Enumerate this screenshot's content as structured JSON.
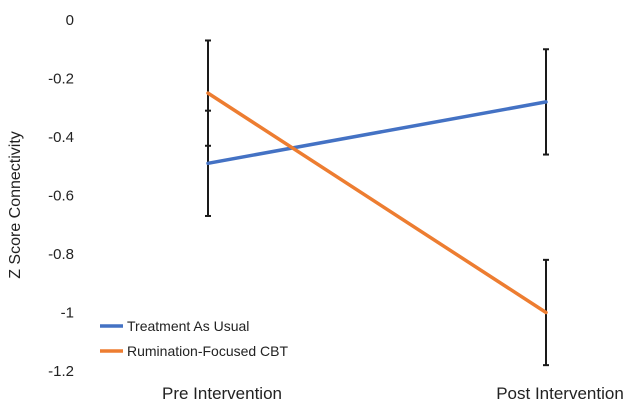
{
  "chart_data": {
    "type": "line",
    "title": "",
    "xlabel": "",
    "ylabel": "Z Score Connectivity",
    "categories": [
      "Pre Intervention",
      "Post Intervention"
    ],
    "ylim": [
      -1.2,
      0
    ],
    "yticks": [
      0,
      -0.2,
      -0.4,
      -0.6,
      -0.8,
      -1,
      -1.2
    ],
    "ytick_labels": [
      "0",
      "-0.2",
      "-0.4",
      "-0.6",
      "-0.8",
      "-1",
      "-1.2"
    ],
    "grid": false,
    "legend_position": "bottom-left",
    "series": [
      {
        "name": "Treatment As Usual",
        "color": "#4472C4",
        "values": [
          -0.49,
          -0.28
        ],
        "error_low": [
          -0.67,
          -0.46
        ],
        "error_high": [
          -0.31,
          -0.1
        ]
      },
      {
        "name": "Rumination-Focused CBT",
        "color": "#ED7D31",
        "values": [
          -0.25,
          -1.0
        ],
        "error_low": [
          -0.43,
          -1.18
        ],
        "error_high": [
          -0.07,
          -0.82
        ]
      }
    ]
  }
}
